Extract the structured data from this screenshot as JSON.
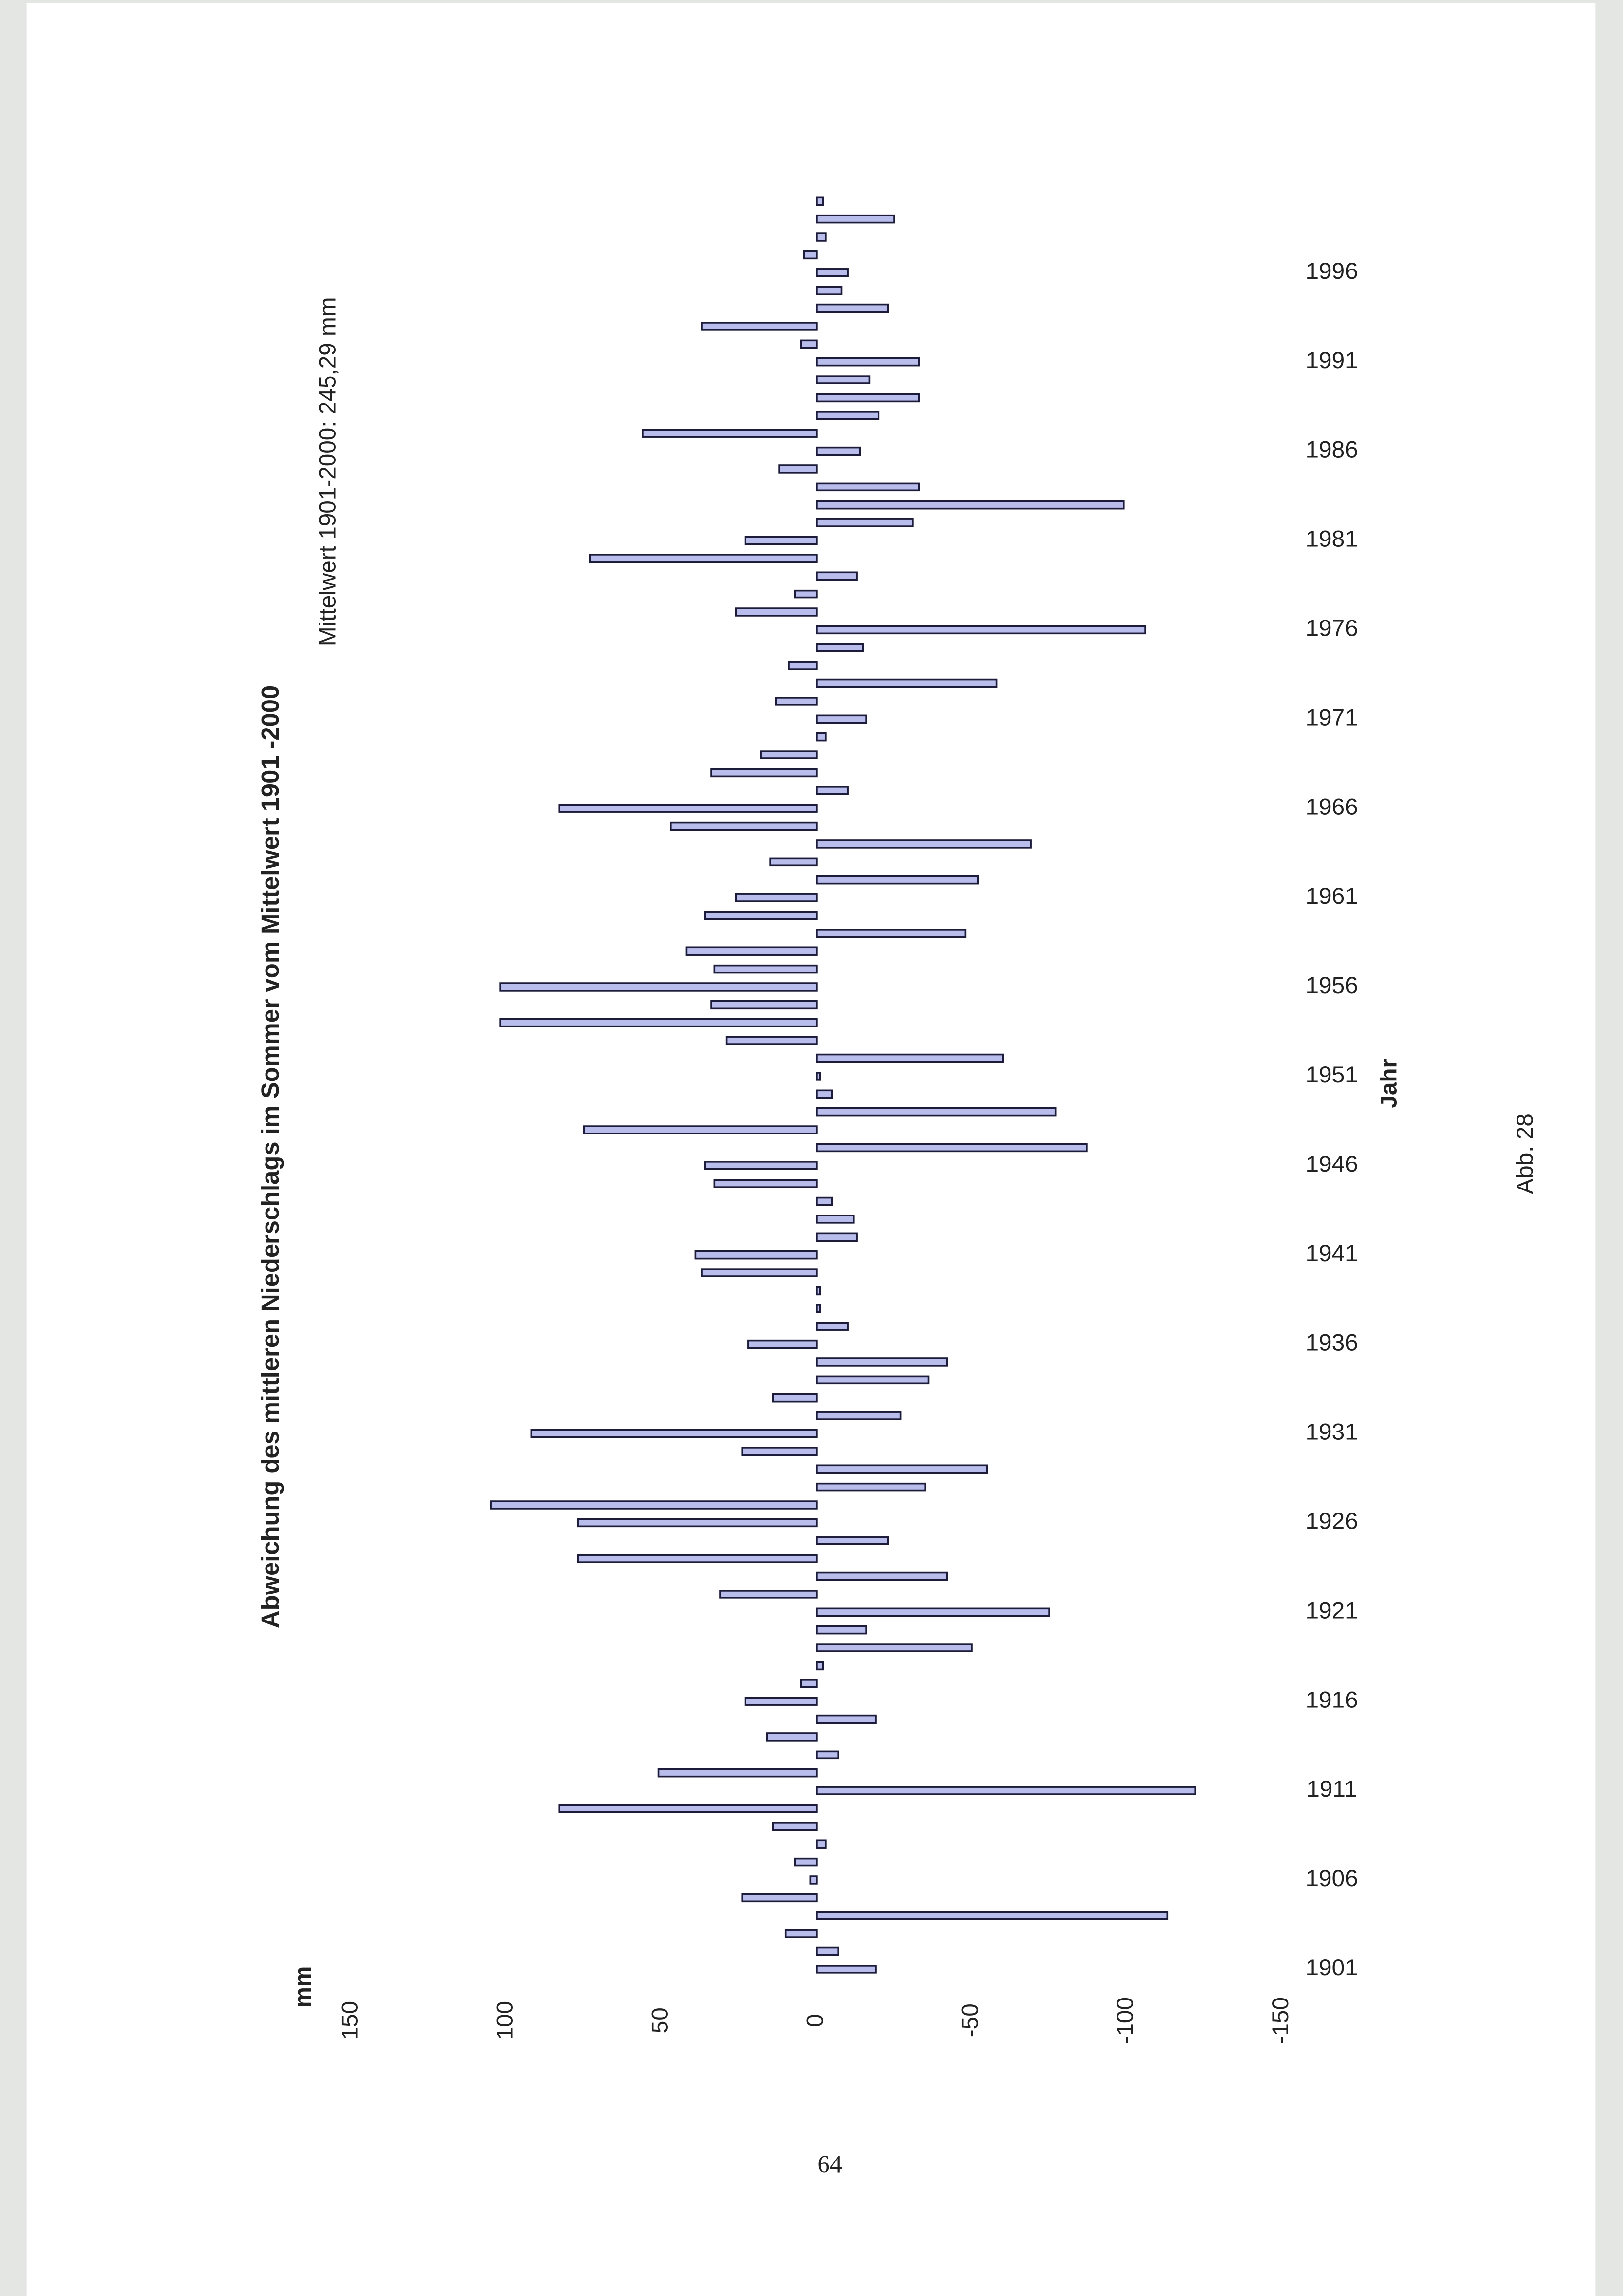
{
  "chart_data": {
    "type": "bar",
    "title": "Abweichung des mittleren Niederschlags im Sommer vom Mittelwert 1901 -2000",
    "subtitle": "Mittelwert 1901-2000: 245,29 mm",
    "y_label": "mm",
    "x_label": "Jahr",
    "color": "#b9bdeb",
    "categories": [
      1901,
      null,
      null,
      null,
      null,
      1906,
      null,
      null,
      null,
      null,
      1911,
      null,
      null,
      null,
      null,
      1916,
      null,
      null,
      null,
      null,
      1921,
      null,
      null,
      null,
      null,
      1926,
      null,
      null,
      null,
      null,
      1931,
      null,
      null,
      null,
      null,
      1936,
      null,
      null,
      null,
      null,
      1941,
      null,
      null,
      null,
      null,
      1946,
      null,
      null,
      null,
      null,
      1951,
      null,
      null,
      null,
      null,
      1956,
      null,
      null,
      null,
      null,
      1961,
      null,
      null,
      null,
      null,
      1966,
      null,
      null,
      null,
      null,
      1971,
      null,
      null,
      null,
      null,
      1976,
      null,
      null,
      null,
      null,
      1981,
      null,
      null,
      null,
      null,
      1986,
      null,
      null,
      null,
      null,
      1991,
      null,
      null,
      null,
      null,
      1996,
      null,
      null,
      null,
      null
    ],
    "values": [
      -19,
      -7,
      10,
      -113,
      24,
      2,
      7,
      -3,
      14,
      83,
      -122,
      51,
      -7,
      16,
      -19,
      23,
      5,
      -2,
      -50,
      -16,
      -75,
      31,
      -42,
      77,
      -23,
      77,
      105,
      -35,
      -55,
      24,
      92,
      -27,
      14,
      -36,
      -42,
      22,
      -10,
      -1,
      -1,
      37,
      39,
      -13,
      -12,
      -5,
      33,
      36,
      -87,
      75,
      -77,
      -5,
      -1,
      -60,
      29,
      102,
      34,
      102,
      33,
      42,
      -48,
      36,
      26,
      -52,
      15,
      -69,
      47,
      83,
      -10,
      34,
      18,
      -3,
      -16,
      13,
      -58,
      9,
      -15,
      -106,
      26,
      7,
      -13,
      73,
      23,
      -31,
      -99,
      -33,
      12,
      -14,
      56,
      -20,
      -33,
      -17,
      -33,
      5,
      37,
      -23,
      -8,
      -10,
      4,
      -3,
      -25,
      -2
    ],
    "ylim": [
      -150,
      150
    ],
    "yticks": [
      150,
      100,
      50,
      0,
      -50,
      -100,
      -150
    ],
    "grid": false
  },
  "figure_label": "Abb. 28",
  "page_number": "64"
}
